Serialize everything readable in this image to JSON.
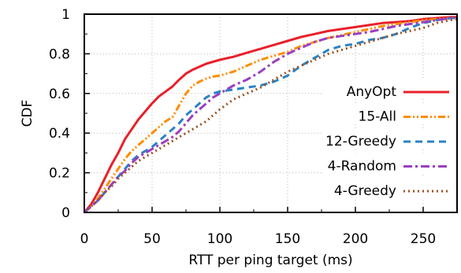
{
  "chart_data": {
    "type": "line",
    "title": "",
    "xlabel": "RTT per ping target (ms)",
    "ylabel": "CDF",
    "xlim": [
      0,
      275
    ],
    "ylim": [
      0,
      1
    ],
    "x_ticks": [
      0,
      50,
      100,
      150,
      200,
      250
    ],
    "y_ticks": [
      0,
      0.2,
      0.4,
      0.6,
      0.8,
      1
    ],
    "x_tick_labels": [
      "0",
      "50",
      "100",
      "150",
      "200",
      "250"
    ],
    "y_tick_labels": [
      "0",
      "0.2",
      "0.4",
      "0.6",
      "0.8",
      "1"
    ],
    "grid": true,
    "legend_position": "right",
    "series": [
      {
        "name": "AnyOpt",
        "color": "#e8202a",
        "dash": "solid",
        "points": [
          [
            0,
            0
          ],
          [
            5,
            0.04
          ],
          [
            10,
            0.1
          ],
          [
            15,
            0.17
          ],
          [
            20,
            0.24
          ],
          [
            25,
            0.3
          ],
          [
            30,
            0.37
          ],
          [
            35,
            0.42
          ],
          [
            40,
            0.47
          ],
          [
            45,
            0.51
          ],
          [
            50,
            0.55
          ],
          [
            55,
            0.585
          ],
          [
            60,
            0.61
          ],
          [
            65,
            0.635
          ],
          [
            70,
            0.67
          ],
          [
            75,
            0.7
          ],
          [
            80,
            0.72
          ],
          [
            85,
            0.735
          ],
          [
            90,
            0.75
          ],
          [
            95,
            0.76
          ],
          [
            100,
            0.77
          ],
          [
            110,
            0.785
          ],
          [
            120,
            0.805
          ],
          [
            130,
            0.825
          ],
          [
            140,
            0.845
          ],
          [
            150,
            0.865
          ],
          [
            160,
            0.885
          ],
          [
            170,
            0.9
          ],
          [
            180,
            0.915
          ],
          [
            190,
            0.925
          ],
          [
            200,
            0.935
          ],
          [
            210,
            0.945
          ],
          [
            220,
            0.955
          ],
          [
            230,
            0.96
          ],
          [
            240,
            0.965
          ],
          [
            250,
            0.975
          ],
          [
            260,
            0.98
          ],
          [
            270,
            0.985
          ],
          [
            275,
            0.985
          ]
        ]
      },
      {
        "name": "15-All",
        "color": "#ff8c00",
        "dash": "dashdotdot",
        "points": [
          [
            0,
            0
          ],
          [
            5,
            0.03
          ],
          [
            10,
            0.07
          ],
          [
            15,
            0.12
          ],
          [
            20,
            0.17
          ],
          [
            25,
            0.22
          ],
          [
            30,
            0.27
          ],
          [
            35,
            0.31
          ],
          [
            40,
            0.34
          ],
          [
            45,
            0.37
          ],
          [
            50,
            0.4
          ],
          [
            55,
            0.43
          ],
          [
            60,
            0.46
          ],
          [
            65,
            0.48
          ],
          [
            70,
            0.54
          ],
          [
            75,
            0.6
          ],
          [
            80,
            0.64
          ],
          [
            85,
            0.66
          ],
          [
            90,
            0.675
          ],
          [
            95,
            0.685
          ],
          [
            100,
            0.69
          ],
          [
            105,
            0.7
          ],
          [
            110,
            0.71
          ],
          [
            120,
            0.74
          ],
          [
            130,
            0.77
          ],
          [
            140,
            0.79
          ],
          [
            150,
            0.81
          ],
          [
            160,
            0.84
          ],
          [
            170,
            0.86
          ],
          [
            180,
            0.88
          ],
          [
            190,
            0.895
          ],
          [
            200,
            0.91
          ],
          [
            210,
            0.925
          ],
          [
            220,
            0.94
          ],
          [
            230,
            0.95
          ],
          [
            240,
            0.96
          ],
          [
            250,
            0.97
          ],
          [
            260,
            0.975
          ],
          [
            270,
            0.98
          ],
          [
            275,
            0.98
          ]
        ]
      },
      {
        "name": "12-Greedy",
        "color": "#2a82c4",
        "dash": "dashed",
        "points": [
          [
            0,
            0
          ],
          [
            5,
            0.03
          ],
          [
            10,
            0.06
          ],
          [
            15,
            0.1
          ],
          [
            20,
            0.14
          ],
          [
            25,
            0.18
          ],
          [
            30,
            0.22
          ],
          [
            35,
            0.26
          ],
          [
            40,
            0.29
          ],
          [
            45,
            0.31
          ],
          [
            50,
            0.33
          ],
          [
            55,
            0.36
          ],
          [
            60,
            0.39
          ],
          [
            65,
            0.42
          ],
          [
            70,
            0.45
          ],
          [
            75,
            0.49
          ],
          [
            80,
            0.52
          ],
          [
            85,
            0.55
          ],
          [
            90,
            0.58
          ],
          [
            95,
            0.6
          ],
          [
            100,
            0.61
          ],
          [
            110,
            0.62
          ],
          [
            120,
            0.63
          ],
          [
            130,
            0.64
          ],
          [
            140,
            0.66
          ],
          [
            150,
            0.69
          ],
          [
            160,
            0.74
          ],
          [
            170,
            0.78
          ],
          [
            180,
            0.82
          ],
          [
            190,
            0.84
          ],
          [
            200,
            0.85
          ],
          [
            210,
            0.87
          ],
          [
            220,
            0.88
          ],
          [
            230,
            0.9
          ],
          [
            240,
            0.93
          ],
          [
            250,
            0.955
          ],
          [
            260,
            0.97
          ],
          [
            270,
            0.98
          ],
          [
            275,
            0.98
          ]
        ]
      },
      {
        "name": "4-Random",
        "color": "#9a3fbf",
        "dash": "dashdot",
        "points": [
          [
            0,
            0
          ],
          [
            5,
            0.03
          ],
          [
            10,
            0.06
          ],
          [
            15,
            0.1
          ],
          [
            20,
            0.14
          ],
          [
            25,
            0.18
          ],
          [
            30,
            0.21
          ],
          [
            35,
            0.25
          ],
          [
            40,
            0.28
          ],
          [
            45,
            0.3
          ],
          [
            50,
            0.32
          ],
          [
            55,
            0.34
          ],
          [
            60,
            0.36
          ],
          [
            65,
            0.38
          ],
          [
            70,
            0.41
          ],
          [
            75,
            0.45
          ],
          [
            80,
            0.49
          ],
          [
            85,
            0.52
          ],
          [
            90,
            0.55
          ],
          [
            95,
            0.58
          ],
          [
            100,
            0.6
          ],
          [
            110,
            0.64
          ],
          [
            120,
            0.67
          ],
          [
            130,
            0.71
          ],
          [
            140,
            0.76
          ],
          [
            150,
            0.8
          ],
          [
            160,
            0.83
          ],
          [
            170,
            0.86
          ],
          [
            180,
            0.88
          ],
          [
            190,
            0.89
          ],
          [
            200,
            0.9
          ],
          [
            210,
            0.91
          ],
          [
            220,
            0.925
          ],
          [
            230,
            0.94
          ],
          [
            240,
            0.95
          ],
          [
            250,
            0.96
          ],
          [
            260,
            0.97
          ],
          [
            270,
            0.98
          ],
          [
            275,
            0.98
          ]
        ]
      },
      {
        "name": "4-Greedy",
        "color": "#9b5220",
        "dash": "dotted",
        "points": [
          [
            0,
            0
          ],
          [
            5,
            0.03
          ],
          [
            10,
            0.06
          ],
          [
            15,
            0.1
          ],
          [
            20,
            0.13
          ],
          [
            25,
            0.17
          ],
          [
            30,
            0.2
          ],
          [
            35,
            0.23
          ],
          [
            40,
            0.26
          ],
          [
            45,
            0.28
          ],
          [
            50,
            0.3
          ],
          [
            55,
            0.32
          ],
          [
            60,
            0.34
          ],
          [
            65,
            0.36
          ],
          [
            70,
            0.38
          ],
          [
            75,
            0.4
          ],
          [
            80,
            0.42
          ],
          [
            85,
            0.44
          ],
          [
            90,
            0.46
          ],
          [
            95,
            0.49
          ],
          [
            100,
            0.52
          ],
          [
            110,
            0.57
          ],
          [
            120,
            0.6
          ],
          [
            130,
            0.63
          ],
          [
            140,
            0.67
          ],
          [
            150,
            0.71
          ],
          [
            160,
            0.74
          ],
          [
            170,
            0.77
          ],
          [
            180,
            0.8
          ],
          [
            190,
            0.82
          ],
          [
            200,
            0.84
          ],
          [
            210,
            0.86
          ],
          [
            220,
            0.88
          ],
          [
            230,
            0.9
          ],
          [
            240,
            0.915
          ],
          [
            250,
            0.93
          ],
          [
            260,
            0.955
          ],
          [
            270,
            0.97
          ],
          [
            275,
            0.975
          ]
        ]
      }
    ]
  }
}
